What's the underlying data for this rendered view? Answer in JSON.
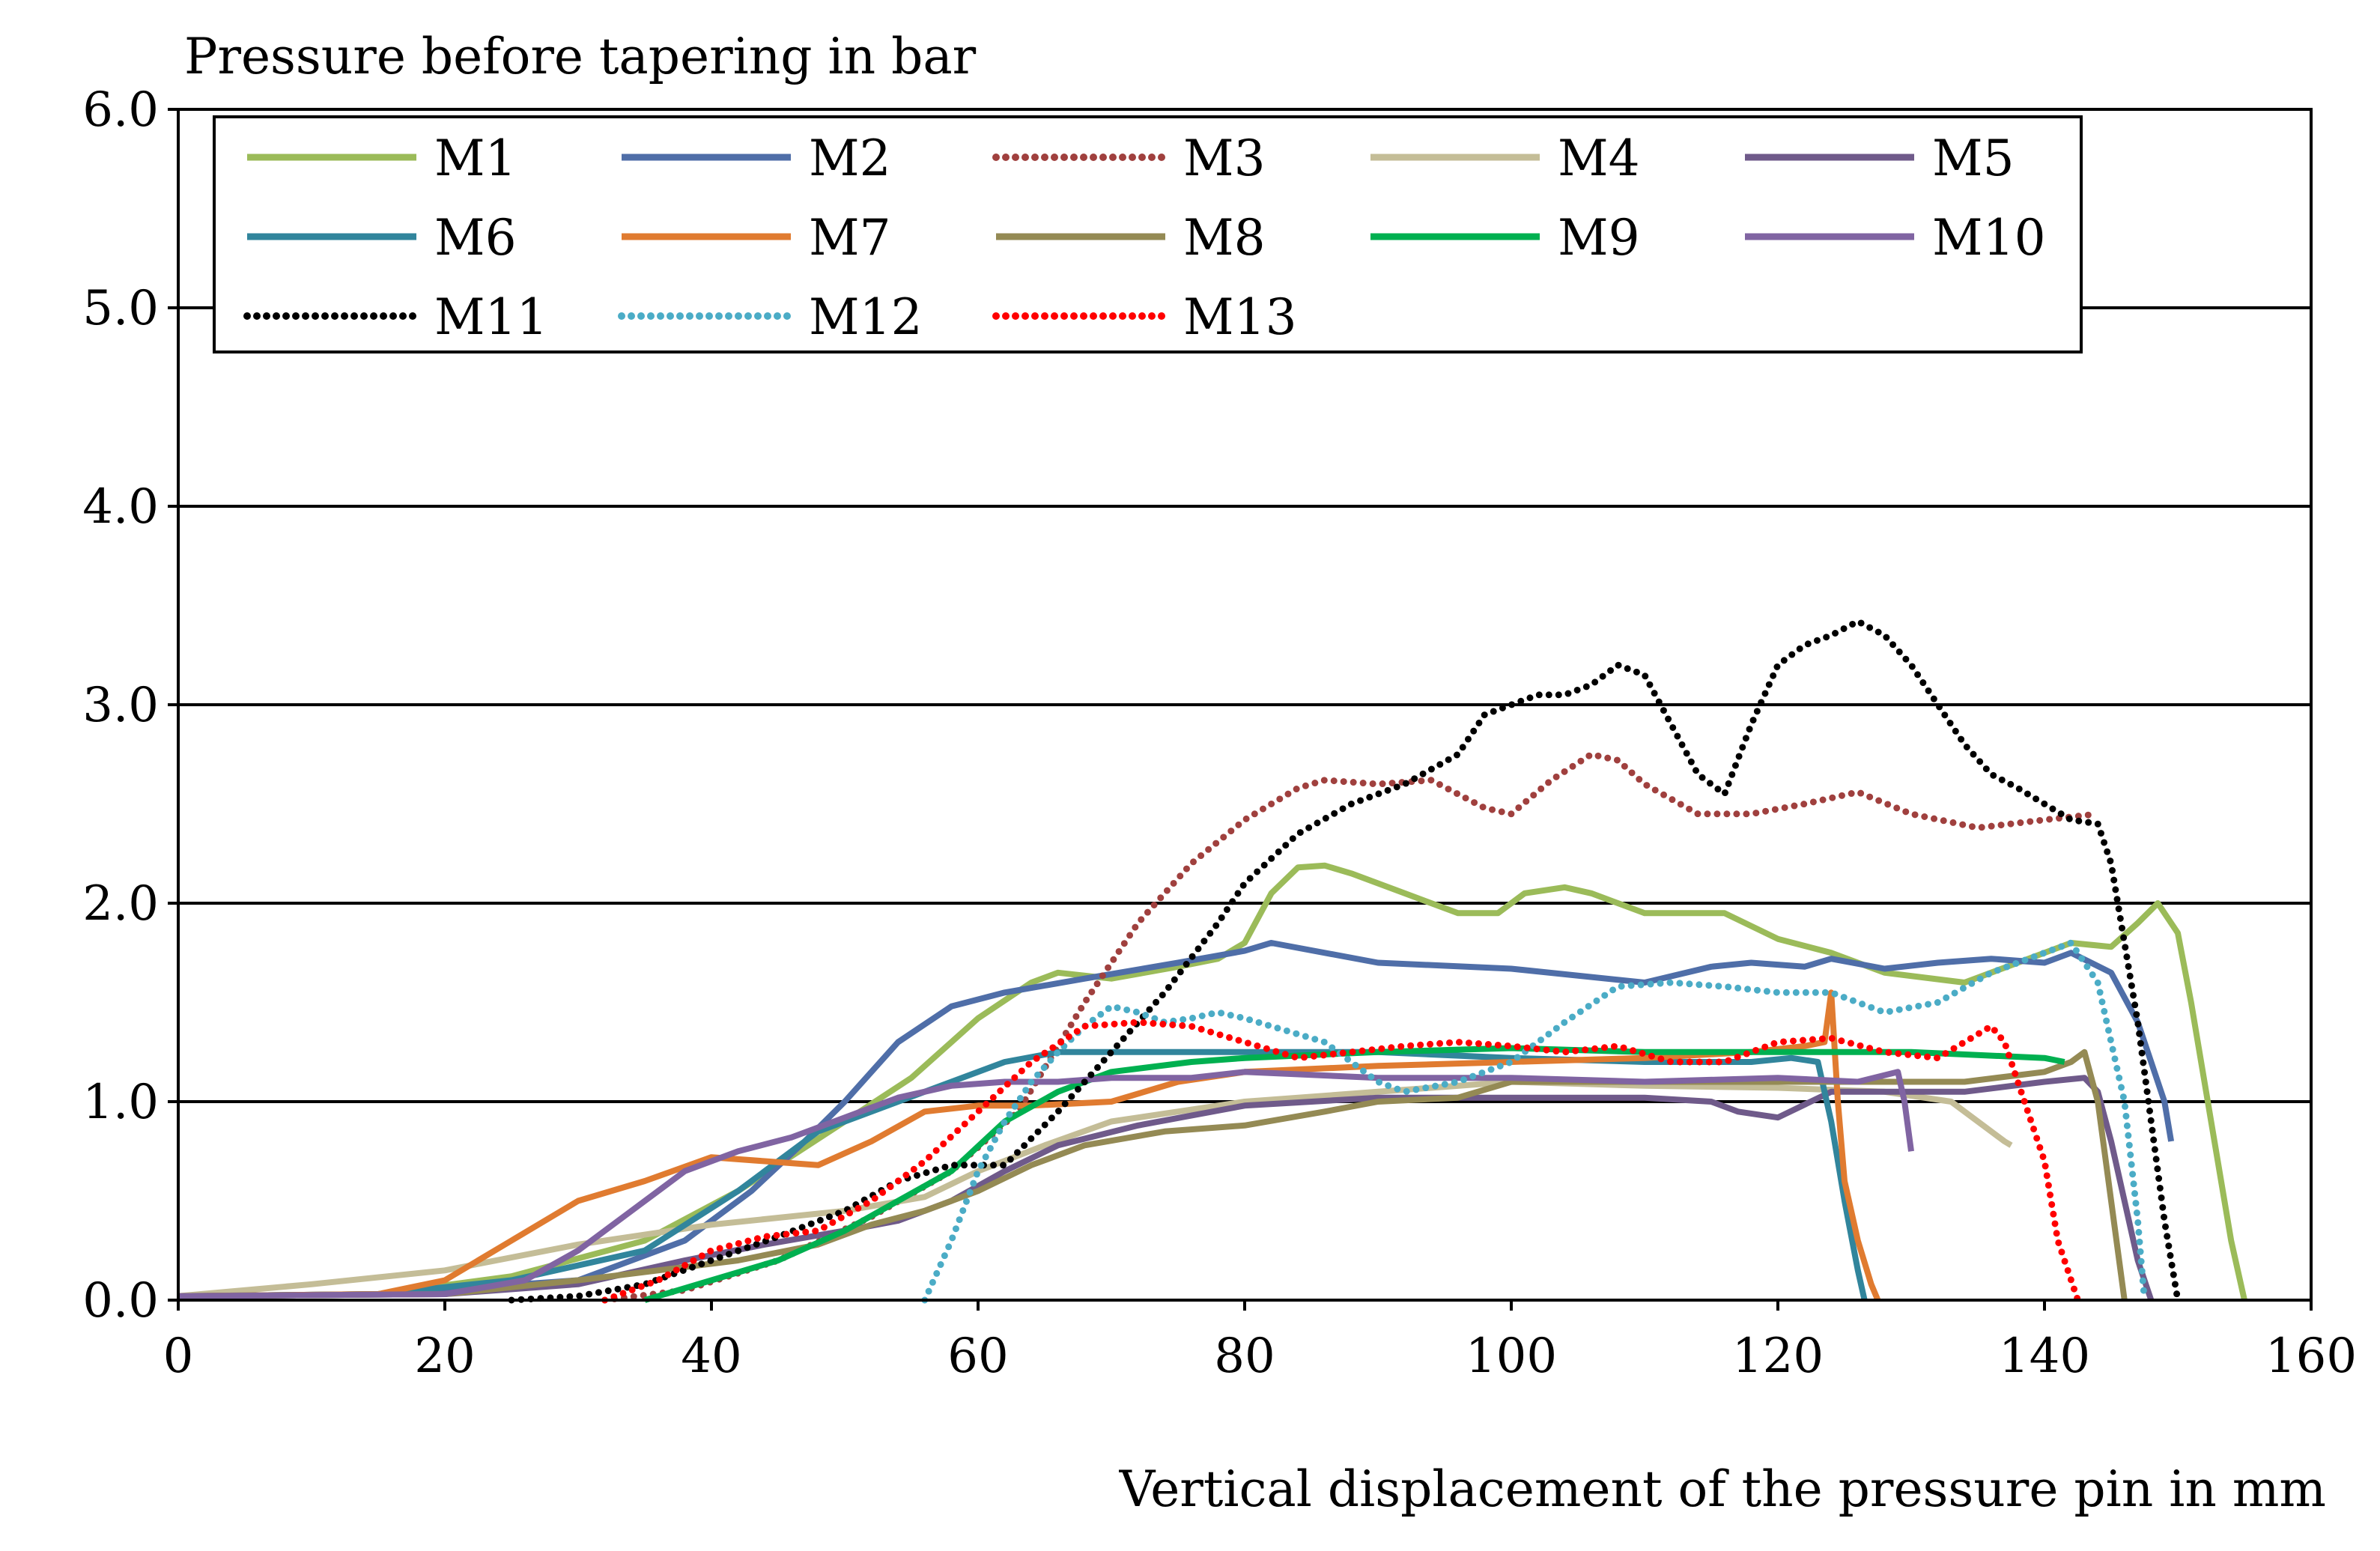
{
  "chart_data": {
    "type": "line",
    "title": "",
    "ylabel": "Pressure before tapering in bar",
    "xlabel": "Vertical displacement of the pressure pin in mm",
    "xlim": [
      0,
      160
    ],
    "ylim": [
      0,
      6
    ],
    "xticks": [
      0,
      20,
      40,
      60,
      80,
      100,
      120,
      140,
      160
    ],
    "yticks": [
      0,
      1,
      2,
      3,
      4,
      5,
      6
    ],
    "ytick_labels": [
      "0.0",
      "1.0",
      "2.0",
      "3.0",
      "4.0",
      "5.0",
      "6.0"
    ],
    "grid": "horizontal",
    "legend_position": "top",
    "series": [
      {
        "name": "M1",
        "color": "#9BBB59",
        "dashed": false,
        "x": [
          0,
          15,
          25,
          35,
          42,
          50,
          55,
          60,
          64,
          66,
          70,
          75,
          78,
          80,
          82,
          84,
          86,
          88,
          92,
          96,
          99,
          101,
          104,
          106,
          110,
          116,
          120,
          124,
          128,
          134,
          138,
          142,
          145,
          147,
          148.5,
          150,
          151,
          152.5,
          154,
          155
        ],
        "y": [
          0.02,
          0.03,
          0.12,
          0.3,
          0.55,
          0.9,
          1.12,
          1.42,
          1.6,
          1.65,
          1.62,
          1.68,
          1.72,
          1.8,
          2.05,
          2.18,
          2.19,
          2.15,
          2.05,
          1.95,
          1.95,
          2.05,
          2.08,
          2.05,
          1.95,
          1.95,
          1.82,
          1.75,
          1.65,
          1.6,
          1.7,
          1.8,
          1.78,
          1.9,
          2.0,
          1.85,
          1.5,
          0.9,
          0.3,
          0
        ]
      },
      {
        "name": "M2",
        "color": "#4F6EA8",
        "dashed": false,
        "x": [
          0,
          15,
          30,
          38,
          43,
          47,
          50,
          54,
          58,
          62,
          68,
          75,
          80,
          82,
          90,
          100,
          110,
          115,
          118,
          122,
          124,
          128,
          132,
          136,
          140,
          142,
          145,
          147,
          149,
          149.5
        ],
        "y": [
          0.02,
          0.03,
          0.1,
          0.3,
          0.55,
          0.8,
          1.0,
          1.3,
          1.48,
          1.55,
          1.62,
          1.7,
          1.76,
          1.8,
          1.7,
          1.67,
          1.6,
          1.68,
          1.7,
          1.68,
          1.72,
          1.67,
          1.7,
          1.72,
          1.7,
          1.75,
          1.65,
          1.4,
          1.0,
          0.8
        ]
      },
      {
        "name": "M3",
        "color": "#A0403E",
        "dashed": true,
        "x": [
          32,
          38,
          45,
          52,
          58,
          63,
          68,
          72,
          76,
          80,
          84,
          86,
          90,
          94,
          98,
          100,
          103,
          106,
          108,
          110,
          114,
          118,
          122,
          126,
          130,
          135,
          140,
          144
        ],
        "y": [
          0,
          0.05,
          0.2,
          0.42,
          0.65,
          0.95,
          1.5,
          1.9,
          2.2,
          2.42,
          2.58,
          2.62,
          2.6,
          2.62,
          2.48,
          2.45,
          2.62,
          2.75,
          2.72,
          2.6,
          2.45,
          2.45,
          2.5,
          2.56,
          2.45,
          2.38,
          2.42,
          2.45
        ]
      },
      {
        "name": "M4",
        "color": "#C4BD97",
        "dashed": false,
        "x": [
          0,
          10,
          20,
          30,
          40,
          50,
          56,
          60,
          65,
          70,
          80,
          90,
          100,
          110,
          120,
          128,
          133,
          135,
          137,
          137.5
        ],
        "y": [
          0.02,
          0.08,
          0.15,
          0.28,
          0.38,
          0.45,
          0.52,
          0.65,
          0.78,
          0.9,
          1.0,
          1.05,
          1.1,
          1.08,
          1.07,
          1.05,
          1.0,
          0.9,
          0.8,
          0.78
        ]
      },
      {
        "name": "M5",
        "color": "#6F5A8A",
        "dashed": false,
        "x": [
          0,
          20,
          30,
          38,
          44,
          50,
          54,
          58,
          62,
          66,
          72,
          80,
          90,
          100,
          110,
          115,
          117,
          120,
          124,
          128,
          134,
          140,
          143,
          144,
          145,
          146,
          147,
          148
        ],
        "y": [
          0.02,
          0.03,
          0.08,
          0.2,
          0.28,
          0.35,
          0.4,
          0.5,
          0.65,
          0.78,
          0.88,
          0.98,
          1.02,
          1.02,
          1.02,
          1.0,
          0.95,
          0.92,
          1.05,
          1.05,
          1.05,
          1.1,
          1.12,
          1.05,
          0.8,
          0.5,
          0.2,
          0
        ]
      },
      {
        "name": "M6",
        "color": "#31859C",
        "dashed": false,
        "x": [
          0,
          15,
          25,
          35,
          42,
          48,
          54,
          58,
          62,
          66,
          70,
          80,
          90,
          100,
          110,
          118,
          121,
          123,
          124,
          125,
          126,
          126.5
        ],
        "y": [
          0.02,
          0.03,
          0.1,
          0.25,
          0.55,
          0.85,
          1.0,
          1.1,
          1.2,
          1.25,
          1.25,
          1.25,
          1.25,
          1.22,
          1.2,
          1.2,
          1.22,
          1.2,
          0.9,
          0.5,
          0.15,
          0
        ]
      },
      {
        "name": "M7",
        "color": "#E07B30",
        "dashed": false,
        "x": [
          0,
          15,
          20,
          25,
          30,
          35,
          40,
          44,
          48,
          52,
          56,
          60,
          64,
          70,
          75,
          80,
          90,
          100,
          110,
          118,
          122,
          123.5,
          124,
          124.5,
          125,
          126,
          127,
          127.5
        ],
        "y": [
          0.02,
          0.03,
          0.1,
          0.3,
          0.5,
          0.6,
          0.72,
          0.7,
          0.68,
          0.8,
          0.95,
          0.98,
          0.98,
          1.0,
          1.1,
          1.15,
          1.18,
          1.2,
          1.22,
          1.25,
          1.28,
          1.3,
          1.55,
          1.0,
          0.6,
          0.3,
          0.08,
          0
        ]
      },
      {
        "name": "M8",
        "color": "#948A54",
        "dashed": false,
        "x": [
          0,
          20,
          30,
          36,
          42,
          48,
          52,
          56,
          60,
          64,
          68,
          74,
          80,
          86,
          90,
          96,
          100,
          110,
          118,
          124,
          128,
          134,
          140,
          142,
          143,
          144,
          145,
          146
        ],
        "y": [
          0.02,
          0.03,
          0.1,
          0.15,
          0.2,
          0.28,
          0.38,
          0.45,
          0.55,
          0.68,
          0.78,
          0.85,
          0.88,
          0.95,
          1.0,
          1.02,
          1.1,
          1.1,
          1.1,
          1.1,
          1.1,
          1.1,
          1.15,
          1.2,
          1.25,
          1.0,
          0.5,
          0
        ]
      },
      {
        "name": "M9",
        "color": "#00B050",
        "dashed": false,
        "x": [
          35,
          40,
          45,
          50,
          54,
          58,
          62,
          66,
          70,
          76,
          80,
          90,
          100,
          110,
          120,
          130,
          140,
          141.5
        ],
        "y": [
          0,
          0.1,
          0.2,
          0.35,
          0.5,
          0.65,
          0.9,
          1.05,
          1.15,
          1.2,
          1.22,
          1.25,
          1.27,
          1.25,
          1.25,
          1.25,
          1.22,
          1.2
        ]
      },
      {
        "name": "M10",
        "color": "#8064A2",
        "dashed": false,
        "x": [
          0,
          20,
          26,
          30,
          34,
          38,
          42,
          46,
          50,
          54,
          58,
          62,
          66,
          70,
          76,
          80,
          90,
          100,
          110,
          120,
          126,
          129,
          129.5,
          130
        ],
        "y": [
          0.02,
          0.03,
          0.1,
          0.25,
          0.45,
          0.65,
          0.75,
          0.82,
          0.92,
          1.02,
          1.08,
          1.1,
          1.1,
          1.12,
          1.12,
          1.15,
          1.12,
          1.12,
          1.1,
          1.12,
          1.1,
          1.15,
          1.0,
          0.75
        ]
      },
      {
        "name": "M11",
        "color": "#000000",
        "dashed": true,
        "x": [
          25,
          30,
          35,
          40,
          45,
          50,
          54,
          58,
          62,
          66,
          70,
          74,
          78,
          80,
          84,
          88,
          92,
          96,
          98,
          102,
          104,
          106,
          108,
          110,
          112,
          114,
          116,
          118,
          120,
          122,
          124,
          126,
          128,
          130,
          132,
          134,
          136,
          138,
          140,
          142,
          144,
          145,
          146,
          147,
          148,
          149,
          150
        ],
        "y": [
          0,
          0.02,
          0.08,
          0.2,
          0.32,
          0.45,
          0.6,
          0.68,
          0.68,
          0.95,
          1.25,
          1.55,
          1.9,
          2.1,
          2.35,
          2.5,
          2.6,
          2.75,
          2.95,
          3.05,
          3.05,
          3.1,
          3.2,
          3.15,
          2.9,
          2.65,
          2.55,
          2.9,
          3.2,
          3.3,
          3.35,
          3.42,
          3.35,
          3.2,
          3.0,
          2.8,
          2.65,
          2.58,
          2.5,
          2.42,
          2.4,
          2.2,
          1.8,
          1.4,
          0.9,
          0.4,
          0
        ]
      },
      {
        "name": "M12",
        "color": "#4BACC6",
        "dashed": true,
        "x": [
          56,
          58,
          60,
          62,
          64,
          66,
          68,
          70,
          72,
          74,
          76,
          78,
          80,
          82,
          86,
          90,
          92,
          96,
          100,
          104,
          108,
          112,
          116,
          120,
          124,
          126,
          128,
          132,
          136,
          140,
          142,
          144,
          146,
          147,
          147.5
        ],
        "y": [
          0,
          0.3,
          0.65,
          0.9,
          1.1,
          1.25,
          1.38,
          1.48,
          1.45,
          1.4,
          1.42,
          1.45,
          1.42,
          1.38,
          1.3,
          1.1,
          1.05,
          1.1,
          1.2,
          1.4,
          1.58,
          1.6,
          1.58,
          1.55,
          1.55,
          1.5,
          1.45,
          1.5,
          1.65,
          1.75,
          1.8,
          1.6,
          1.0,
          0.4,
          0
        ]
      },
      {
        "name": "M13",
        "color": "#FF0000",
        "dashed": true,
        "x": [
          32,
          36,
          40,
          44,
          48,
          52,
          56,
          60,
          64,
          68,
          72,
          76,
          80,
          84,
          88,
          92,
          96,
          100,
          104,
          108,
          112,
          116,
          120,
          124,
          128,
          132,
          134,
          136,
          137,
          138,
          140,
          141,
          142,
          142.5
        ],
        "y": [
          0,
          0.1,
          0.25,
          0.32,
          0.35,
          0.5,
          0.7,
          0.95,
          1.2,
          1.38,
          1.4,
          1.38,
          1.3,
          1.22,
          1.25,
          1.28,
          1.3,
          1.28,
          1.25,
          1.28,
          1.2,
          1.2,
          1.3,
          1.32,
          1.25,
          1.22,
          1.3,
          1.38,
          1.3,
          1.1,
          0.7,
          0.3,
          0.1,
          0
        ]
      }
    ]
  }
}
